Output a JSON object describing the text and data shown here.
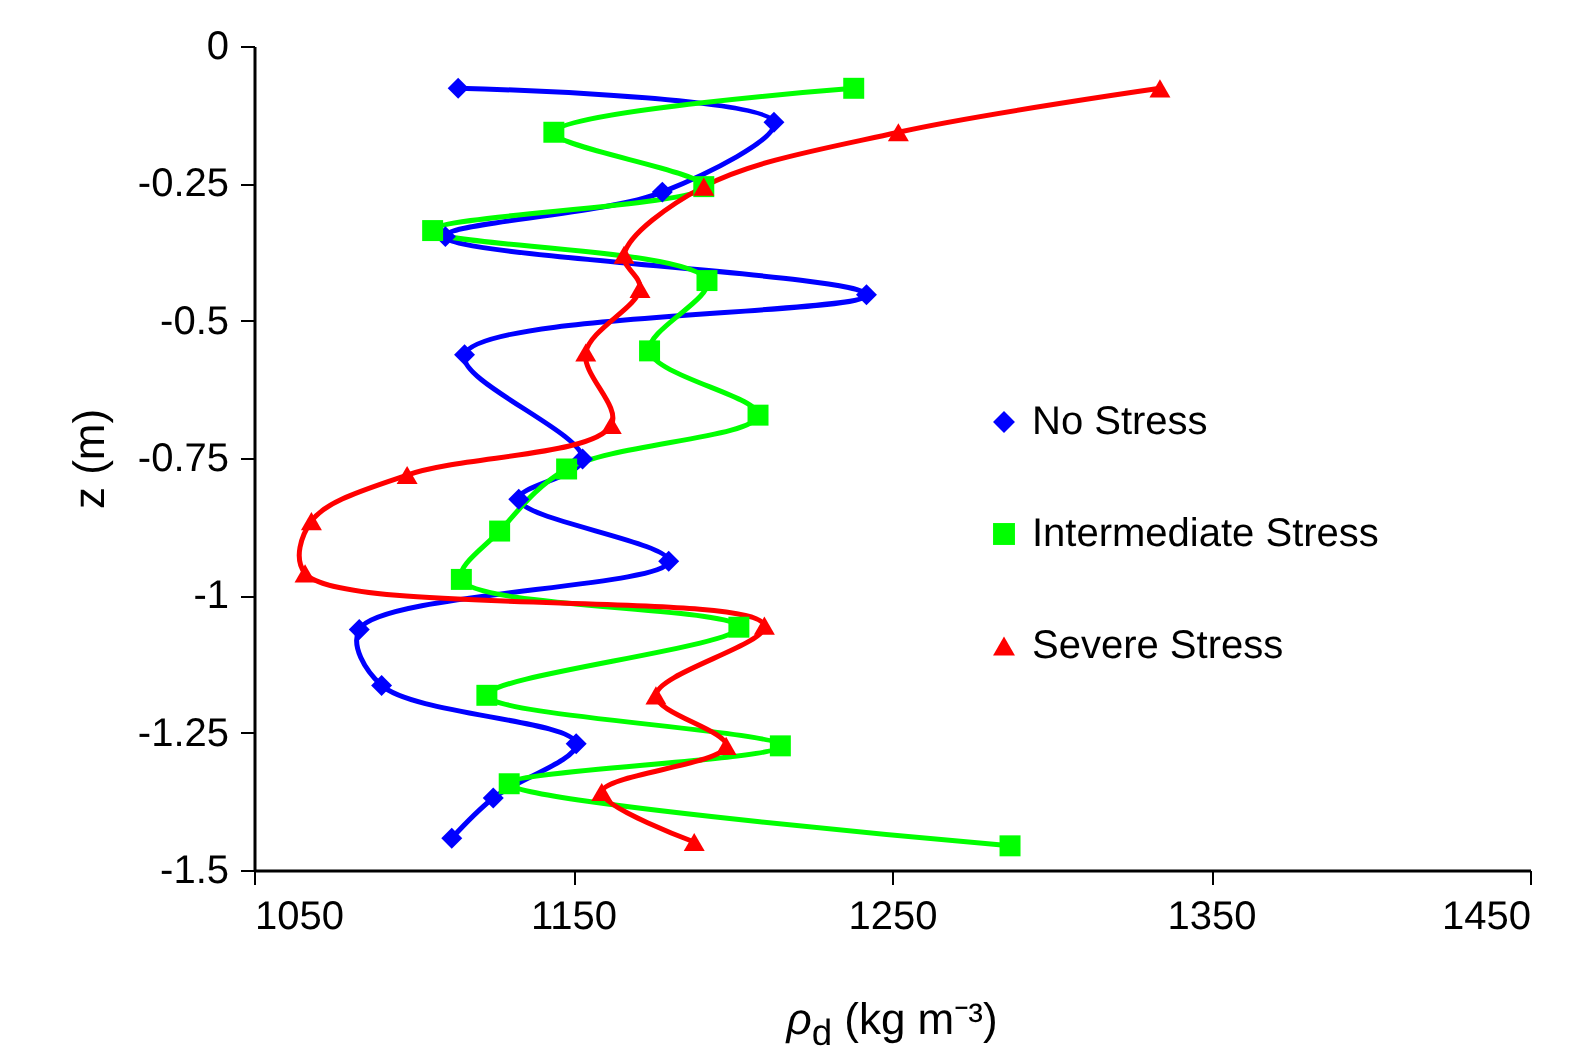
{
  "chart_data": {
    "type": "line",
    "xlabel": "ρ$_{d}$ (kg m⁻³)",
    "ylabel": "z (m)",
    "xlim": [
      1050,
      1450
    ],
    "xticks": [
      1050,
      1150,
      1250,
      1350,
      1450
    ],
    "ylim": [
      -1.5,
      0
    ],
    "yticks": [
      0,
      -0.25,
      -0.5,
      -0.75,
      -1,
      -1.25,
      -1.5
    ],
    "grid": false,
    "legend": "right",
    "line_style": "solid",
    "series": [
      {
        "name": "No Stress",
        "color": "#0000ff",
        "marker": "diamond",
        "x": [
          1114,
          1213,
          1178,
          1110,
          1242,
          1116,
          1153,
          1133,
          1180,
          1083,
          1090,
          1151,
          1125,
          1112
        ],
        "values": [
          -0.077,
          -0.139,
          -0.266,
          -0.347,
          -0.453,
          -0.562,
          -0.752,
          -0.825,
          -0.938,
          -1.062,
          -1.164,
          -1.27,
          -1.369,
          -1.442
        ]
      },
      {
        "name": "Intermediate Stress",
        "color": "#00ff00",
        "marker": "square",
        "x": [
          1238,
          1144,
          1191,
          1106,
          1192,
          1174,
          1208,
          1148,
          1127,
          1115,
          1202,
          1123,
          1215,
          1130,
          1287
        ],
        "values": [
          -0.077,
          -0.157,
          -0.256,
          -0.336,
          -0.427,
          -0.555,
          -0.672,
          -0.77,
          -0.883,
          -0.971,
          -1.058,
          -1.182,
          -1.274,
          -1.343,
          -1.456
        ]
      },
      {
        "name": "Severe Stress",
        "color": "#ff0000",
        "marker": "triangle",
        "x": [
          1334,
          1252,
          1191,
          1166,
          1171,
          1154,
          1162,
          1098,
          1068,
          1066,
          1210,
          1176,
          1198,
          1159,
          1188
        ],
        "values": [
          -0.077,
          -0.157,
          -0.256,
          -0.38,
          -0.442,
          -0.558,
          -0.69,
          -0.781,
          -0.865,
          -0.96,
          -1.055,
          -1.182,
          -1.274,
          -1.358,
          -1.449
        ]
      }
    ]
  }
}
